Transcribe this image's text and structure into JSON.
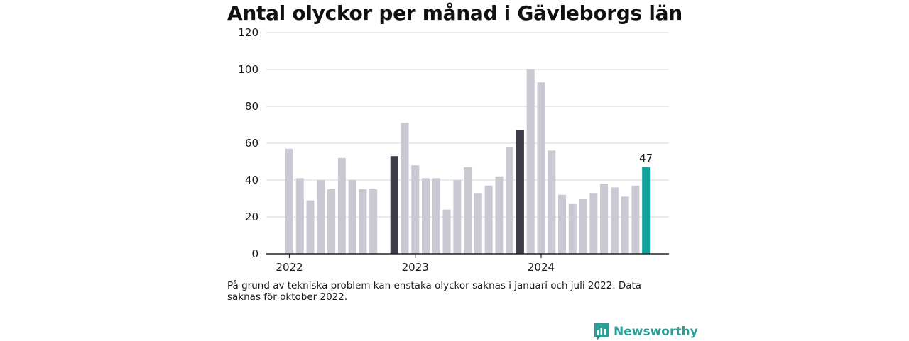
{
  "title": "Antal olyckor per månad i Gävleborgs län",
  "note": "På grund av tekniska problem kan enstaka olyckor saknas i januari och juli 2022. Data saknas för oktober 2022.",
  "brand": {
    "name": "Newsworthy",
    "icon": "bar-chart-speech-bubble-icon"
  },
  "colors": {
    "default": "#c9c8d3",
    "highlight": "#3d3b48",
    "latest": "#12a29b",
    "grid": "#d9d9d9",
    "axis": "#222222",
    "brand": "#2a9d96"
  },
  "chart_data": {
    "type": "bar",
    "title": "Antal olyckor per månad i Gävleborgs län",
    "xlabel": "",
    "ylabel": "",
    "ylim": [
      0,
      120
    ],
    "yticks": [
      0,
      20,
      40,
      60,
      80,
      100,
      120
    ],
    "grid": true,
    "legend": "none",
    "xticks": [
      {
        "label": "2022",
        "month": "2022-01"
      },
      {
        "label": "2023",
        "month": "2023-01"
      },
      {
        "label": "2024",
        "month": "2024-01"
      }
    ],
    "annotations": [
      {
        "month": "2024-11",
        "text": "47"
      }
    ],
    "data": [
      {
        "month": "2022-01",
        "value": 57,
        "color": "default"
      },
      {
        "month": "2022-02",
        "value": 41,
        "color": "default"
      },
      {
        "month": "2022-03",
        "value": 29,
        "color": "default"
      },
      {
        "month": "2022-04",
        "value": 40,
        "color": "default"
      },
      {
        "month": "2022-05",
        "value": 35,
        "color": "default"
      },
      {
        "month": "2022-06",
        "value": 52,
        "color": "default"
      },
      {
        "month": "2022-07",
        "value": 40,
        "color": "default"
      },
      {
        "month": "2022-08",
        "value": 35,
        "color": "default"
      },
      {
        "month": "2022-09",
        "value": 35,
        "color": "default"
      },
      {
        "month": "2022-10",
        "value": null,
        "color": "default"
      },
      {
        "month": "2022-11",
        "value": 53,
        "color": "highlight"
      },
      {
        "month": "2022-12",
        "value": 71,
        "color": "default"
      },
      {
        "month": "2023-01",
        "value": 48,
        "color": "default"
      },
      {
        "month": "2023-02",
        "value": 41,
        "color": "default"
      },
      {
        "month": "2023-03",
        "value": 41,
        "color": "default"
      },
      {
        "month": "2023-04",
        "value": 24,
        "color": "default"
      },
      {
        "month": "2023-05",
        "value": 40,
        "color": "default"
      },
      {
        "month": "2023-06",
        "value": 47,
        "color": "default"
      },
      {
        "month": "2023-07",
        "value": 33,
        "color": "default"
      },
      {
        "month": "2023-08",
        "value": 37,
        "color": "default"
      },
      {
        "month": "2023-09",
        "value": 42,
        "color": "default"
      },
      {
        "month": "2023-10",
        "value": 58,
        "color": "default"
      },
      {
        "month": "2023-11",
        "value": 67,
        "color": "highlight"
      },
      {
        "month": "2023-12",
        "value": 100,
        "color": "default"
      },
      {
        "month": "2024-01",
        "value": 93,
        "color": "default"
      },
      {
        "month": "2024-02",
        "value": 56,
        "color": "default"
      },
      {
        "month": "2024-03",
        "value": 32,
        "color": "default"
      },
      {
        "month": "2024-04",
        "value": 27,
        "color": "default"
      },
      {
        "month": "2024-05",
        "value": 30,
        "color": "default"
      },
      {
        "month": "2024-06",
        "value": 33,
        "color": "default"
      },
      {
        "month": "2024-07",
        "value": 38,
        "color": "default"
      },
      {
        "month": "2024-08",
        "value": 36,
        "color": "default"
      },
      {
        "month": "2024-09",
        "value": 31,
        "color": "default"
      },
      {
        "month": "2024-10",
        "value": 37,
        "color": "default"
      },
      {
        "month": "2024-11",
        "value": 47,
        "color": "latest"
      }
    ]
  }
}
